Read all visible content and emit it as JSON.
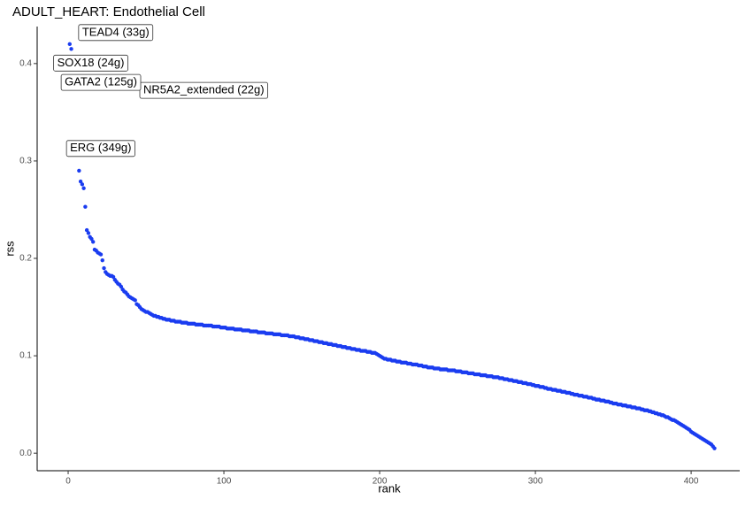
{
  "chart_data": {
    "type": "scatter",
    "title": "ADULT_HEART: Endothelial Cell",
    "x_label": "rank",
    "y_label": "rss",
    "color": "#1a3cf0",
    "labels": [
      "TEAD4 (33g)",
      "SOX18 (24g)",
      "NR5A2_extended (22g)",
      "GATA2 (125g)",
      "ERG (349g)"
    ],
    "xlim": [
      -19.9,
      431.2
    ],
    "ylim": [
      -0.018,
      0.438
    ],
    "xticks": [
      0,
      100,
      200,
      300,
      400
    ],
    "yticks": [
      {
        "value": 0,
        "label": "0.0"
      },
      0.1,
      0.2,
      0.3,
      0.4
    ],
    "x": [
      1,
      2,
      3,
      4,
      5,
      6,
      7,
      8,
      9,
      10,
      11,
      12,
      13,
      14,
      15,
      16,
      17,
      18,
      19,
      20,
      21,
      22,
      23,
      24,
      25,
      26,
      27,
      28,
      29,
      30,
      31,
      32,
      33,
      34,
      35,
      36,
      37,
      38,
      39,
      40,
      41,
      42,
      43,
      44,
      45,
      46,
      47,
      48,
      49,
      50,
      51,
      52,
      53,
      54,
      55,
      56,
      57,
      58,
      59,
      60,
      61,
      62,
      63,
      64,
      65,
      66,
      67,
      68,
      69,
      70,
      71,
      72,
      73,
      74,
      75,
      76,
      77,
      78,
      79,
      80,
      81,
      82,
      83,
      84,
      85,
      86,
      87,
      88,
      89,
      90,
      91,
      92,
      93,
      94,
      95,
      96,
      97,
      98,
      99,
      100,
      101,
      102,
      103,
      104,
      105,
      106,
      107,
      108,
      109,
      110,
      111,
      112,
      113,
      114,
      115,
      116,
      117,
      118,
      119,
      120,
      121,
      122,
      123,
      124,
      125,
      126,
      127,
      128,
      129,
      130,
      131,
      132,
      133,
      134,
      135,
      136,
      137,
      138,
      139,
      140,
      141,
      142,
      143,
      144,
      145,
      146,
      147,
      148,
      149,
      150,
      151,
      152,
      153,
      154,
      155,
      156,
      157,
      158,
      159,
      160,
      161,
      162,
      163,
      164,
      165,
      166,
      167,
      168,
      169,
      170,
      171,
      172,
      173,
      174,
      175,
      176,
      177,
      178,
      179,
      180,
      181,
      182,
      183,
      184,
      185,
      186,
      187,
      188,
      189,
      190,
      191,
      192,
      193,
      194,
      195,
      196,
      197,
      198,
      199,
      200,
      201,
      202,
      203,
      204,
      205,
      206,
      207,
      208,
      209,
      210,
      211,
      212,
      213,
      214,
      215,
      216,
      217,
      218,
      219,
      220,
      221,
      222,
      223,
      224,
      225,
      226,
      227,
      228,
      229,
      230,
      231,
      232,
      233,
      234,
      235,
      236,
      237,
      238,
      239,
      240,
      241,
      242,
      243,
      244,
      245,
      246,
      247,
      248,
      249,
      250,
      251,
      252,
      253,
      254,
      255,
      256,
      257,
      258,
      259,
      260,
      261,
      262,
      263,
      264,
      265,
      266,
      267,
      268,
      269,
      270,
      271,
      272,
      273,
      274,
      275,
      276,
      277,
      278,
      279,
      280,
      281,
      282,
      283,
      284,
      285,
      286,
      287,
      288,
      289,
      290,
      291,
      292,
      293,
      294,
      295,
      296,
      297,
      298,
      299,
      300,
      301,
      302,
      303,
      304,
      305,
      306,
      307,
      308,
      309,
      310,
      311,
      312,
      313,
      314,
      315,
      316,
      317,
      318,
      319,
      320,
      321,
      322,
      323,
      324,
      325,
      326,
      327,
      328,
      329,
      330,
      331,
      332,
      333,
      334,
      335,
      336,
      337,
      338,
      339,
      340,
      341,
      342,
      343,
      344,
      345,
      346,
      347,
      348,
      349,
      350,
      351,
      352,
      353,
      354,
      355,
      356,
      357,
      358,
      359,
      360,
      361,
      362,
      363,
      364,
      365,
      366,
      367,
      368,
      369,
      370,
      371,
      372,
      373,
      374,
      375,
      376,
      377,
      378,
      379,
      380,
      381,
      382,
      383,
      384,
      385,
      386,
      387,
      388,
      389,
      390,
      391,
      392,
      393,
      394,
      395,
      396,
      397,
      398,
      399,
      400,
      401,
      402,
      403,
      404,
      405,
      406,
      407,
      408,
      409,
      410,
      411,
      412,
      413,
      414,
      415
    ],
    "values": [
      0.42,
      0.415,
      0.387,
      0.377,
      0.311,
      0.31,
      0.29,
      0.279,
      0.276,
      0.272,
      0.253,
      0.229,
      0.226,
      0.222,
      0.22,
      0.217,
      0.209,
      0.208,
      0.206,
      0.205,
      0.204,
      0.198,
      0.19,
      0.186,
      0.184,
      0.183,
      0.182,
      0.182,
      0.181,
      0.178,
      0.176,
      0.174,
      0.173,
      0.171,
      0.168,
      0.166,
      0.165,
      0.163,
      0.161,
      0.16,
      0.159,
      0.158,
      0.157,
      0.153,
      0.152,
      0.15,
      0.148,
      0.147,
      0.146,
      0.145,
      0.145,
      0.144,
      0.143,
      0.142,
      0.141,
      0.141,
      0.14,
      0.14,
      0.139,
      0.139,
      0.138,
      0.138,
      0.137,
      0.137,
      0.137,
      0.136,
      0.136,
      0.136,
      0.135,
      0.135,
      0.135,
      0.135,
      0.134,
      0.134,
      0.134,
      0.134,
      0.133,
      0.133,
      0.133,
      0.133,
      0.133,
      0.132,
      0.132,
      0.132,
      0.132,
      0.132,
      0.131,
      0.131,
      0.131,
      0.131,
      0.131,
      0.131,
      0.13,
      0.13,
      0.13,
      0.13,
      0.13,
      0.129,
      0.129,
      0.129,
      0.129,
      0.128,
      0.128,
      0.128,
      0.128,
      0.128,
      0.127,
      0.127,
      0.127,
      0.127,
      0.127,
      0.126,
      0.126,
      0.126,
      0.126,
      0.126,
      0.125,
      0.125,
      0.125,
      0.125,
      0.125,
      0.124,
      0.124,
      0.124,
      0.124,
      0.124,
      0.123,
      0.123,
      0.123,
      0.123,
      0.123,
      0.122,
      0.122,
      0.122,
      0.122,
      0.122,
      0.121,
      0.121,
      0.121,
      0.121,
      0.121,
      0.12,
      0.12,
      0.12,
      0.12,
      0.119,
      0.119,
      0.119,
      0.118,
      0.118,
      0.118,
      0.117,
      0.117,
      0.117,
      0.116,
      0.116,
      0.116,
      0.115,
      0.115,
      0.115,
      0.114,
      0.114,
      0.114,
      0.113,
      0.113,
      0.113,
      0.112,
      0.112,
      0.112,
      0.111,
      0.111,
      0.111,
      0.11,
      0.11,
      0.11,
      0.109,
      0.109,
      0.109,
      0.108,
      0.108,
      0.108,
      0.107,
      0.107,
      0.107,
      0.106,
      0.106,
      0.106,
      0.105,
      0.105,
      0.105,
      0.105,
      0.104,
      0.104,
      0.104,
      0.103,
      0.103,
      0.103,
      0.102,
      0.101,
      0.1,
      0.099,
      0.098,
      0.097,
      0.097,
      0.096,
      0.096,
      0.096,
      0.095,
      0.095,
      0.095,
      0.094,
      0.094,
      0.094,
      0.093,
      0.093,
      0.093,
      0.093,
      0.092,
      0.092,
      0.092,
      0.091,
      0.091,
      0.091,
      0.091,
      0.09,
      0.09,
      0.09,
      0.089,
      0.089,
      0.089,
      0.088,
      0.088,
      0.088,
      0.088,
      0.087,
      0.087,
      0.087,
      0.087,
      0.086,
      0.086,
      0.086,
      0.086,
      0.086,
      0.085,
      0.085,
      0.085,
      0.085,
      0.085,
      0.084,
      0.084,
      0.084,
      0.084,
      0.083,
      0.083,
      0.083,
      0.083,
      0.082,
      0.082,
      0.082,
      0.082,
      0.081,
      0.081,
      0.081,
      0.081,
      0.08,
      0.08,
      0.08,
      0.08,
      0.079,
      0.079,
      0.079,
      0.079,
      0.078,
      0.078,
      0.078,
      0.078,
      0.077,
      0.077,
      0.077,
      0.076,
      0.076,
      0.076,
      0.075,
      0.075,
      0.075,
      0.074,
      0.074,
      0.074,
      0.073,
      0.073,
      0.073,
      0.072,
      0.072,
      0.072,
      0.071,
      0.071,
      0.071,
      0.07,
      0.07,
      0.069,
      0.069,
      0.069,
      0.068,
      0.068,
      0.068,
      0.067,
      0.067,
      0.066,
      0.066,
      0.066,
      0.065,
      0.065,
      0.065,
      0.064,
      0.064,
      0.064,
      0.063,
      0.063,
      0.063,
      0.062,
      0.062,
      0.062,
      0.061,
      0.061,
      0.06,
      0.06,
      0.06,
      0.059,
      0.059,
      0.059,
      0.058,
      0.058,
      0.058,
      0.057,
      0.057,
      0.057,
      0.056,
      0.056,
      0.055,
      0.055,
      0.055,
      0.054,
      0.054,
      0.054,
      0.053,
      0.053,
      0.053,
      0.052,
      0.052,
      0.051,
      0.051,
      0.051,
      0.05,
      0.05,
      0.05,
      0.049,
      0.049,
      0.049,
      0.048,
      0.048,
      0.048,
      0.047,
      0.047,
      0.047,
      0.046,
      0.046,
      0.046,
      0.045,
      0.045,
      0.044,
      0.044,
      0.044,
      0.043,
      0.043,
      0.042,
      0.042,
      0.041,
      0.041,
      0.04,
      0.04,
      0.039,
      0.039,
      0.038,
      0.037,
      0.037,
      0.036,
      0.035,
      0.034,
      0.034,
      0.033,
      0.032,
      0.031,
      0.03,
      0.029,
      0.028,
      0.027,
      0.026,
      0.025,
      0.024,
      0.022,
      0.021,
      0.02,
      0.019,
      0.018,
      0.017,
      0.016,
      0.015,
      0.014,
      0.013,
      0.012,
      0.011,
      0.01,
      0.009,
      0.007,
      0.005
    ]
  }
}
